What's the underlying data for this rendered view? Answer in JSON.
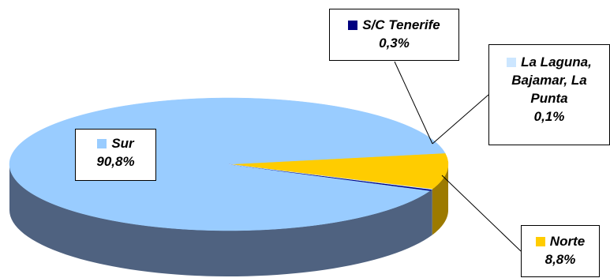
{
  "chart_data": {
    "type": "pie",
    "title": "",
    "slices": [
      {
        "label": "Sur",
        "value": 90.8,
        "value_label": "90,8%",
        "color": "#99ccff"
      },
      {
        "label": "Norte",
        "value": 8.8,
        "value_label": "8,8%",
        "color": "#ffcc00"
      },
      {
        "label": "S/C Tenerife",
        "value": 0.3,
        "value_label": "0,3%",
        "color": "#000080"
      },
      {
        "label_lines": [
          "La Laguna,",
          "Bajamar, La",
          "Punta"
        ],
        "value": 0.1,
        "value_label": "0,1%",
        "color": "#cce6ff"
      }
    ],
    "depth_color": "#4f6280",
    "legend": "none",
    "data_labels": "callouts with leader lines"
  }
}
